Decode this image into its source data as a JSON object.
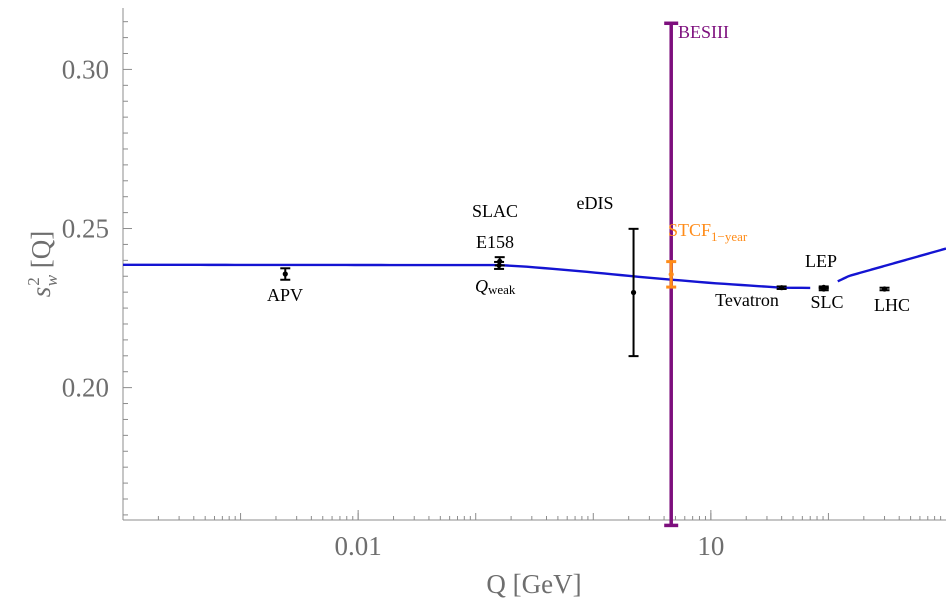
{
  "chart_data": {
    "type": "scatter",
    "xlabel": "Q [GeV]",
    "ylabel": {
      "base": "s",
      "sup": "2",
      "sub": "w",
      "rest": " [Q]"
    },
    "xscale": "log",
    "xlim": [
      0.0001,
      1000
    ],
    "ylim": [
      0.1584,
      0.3193
    ],
    "x_ticks": [
      {
        "value": 0.01,
        "label": "0.01"
      },
      {
        "value": 10,
        "label": "10"
      }
    ],
    "y_ticks": [
      {
        "value": 0.2,
        "label": "0.20"
      },
      {
        "value": 0.25,
        "label": "0.25"
      },
      {
        "value": 0.3,
        "label": "0.30"
      }
    ],
    "grid": false,
    "running_curve": {
      "color": "#1414d2",
      "points": [
        [
          0.0001,
          0.2386
        ],
        [
          0.16,
          0.2385
        ],
        [
          0.25,
          0.2381
        ],
        [
          0.5,
          0.2372
        ],
        [
          1,
          0.2362
        ],
        [
          3,
          0.2345
        ],
        [
          10,
          0.2329
        ],
        [
          40,
          0.2314
        ],
        [
          91,
          0.2313
        ],
        [
          150,
          0.2351
        ],
        [
          1000,
          0.2437
        ]
      ],
      "gap": [
        70,
        120
      ]
    },
    "measurements": [
      {
        "name": "APV",
        "x": 0.0024,
        "y": 0.2357,
        "yerr": 0.0018,
        "color": "#000000"
      },
      {
        "name": "E158",
        "x": 0.16,
        "y": 0.2397,
        "yerr": 0.0013,
        "color": "#000000"
      },
      {
        "name": "Qweak",
        "x": 0.158,
        "y": 0.2384,
        "yerr": 0.0011,
        "color": "#000000"
      },
      {
        "name": "eDIS",
        "x": 2.2,
        "y": 0.2299,
        "yerr": 0.02,
        "color": "#000000"
      },
      {
        "name": "BESIII",
        "x": 4.6,
        "y": 0.2356,
        "yerr": 0.0789,
        "color": "#7d0f7d"
      },
      {
        "name": "STCF_1-year",
        "x": 4.6,
        "y": 0.2356,
        "yerr": 0.004,
        "color": "#ff8c19"
      },
      {
        "name": "Tevatron",
        "x": 40,
        "y": 0.2314,
        "yerr": 0.0004,
        "color": "#000000"
      },
      {
        "name": "LEP",
        "x": 91.2,
        "y": 0.2315,
        "yerr": 0.0003,
        "color": "#000000"
      },
      {
        "name": "SLC",
        "x": 91.2,
        "y": 0.231,
        "yerr": 0.0004,
        "color": "#000000"
      },
      {
        "name": "LHC",
        "x": 300,
        "y": 0.231,
        "yerr": 0.0004,
        "color": "#000000"
      }
    ],
    "labels": {
      "besiii": "BESIII",
      "stcf": {
        "main": "STCF",
        "sub": "1−year"
      },
      "slac": "SLAC",
      "e158": "E158",
      "qweak": {
        "main": "Q",
        "sub": "weak"
      },
      "edis": "eDIS",
      "apv": "APV",
      "tevatron": "Tevatron",
      "lep": "LEP",
      "slc": "SLC",
      "lhc": "LHC"
    },
    "colors": {
      "axis": "#8c8c8c",
      "tick_label": "#6e6e6e",
      "curve": "#1414d2",
      "besiii": "#7d0f7d",
      "stcf": "#ff8c19",
      "points": "#000000"
    }
  }
}
